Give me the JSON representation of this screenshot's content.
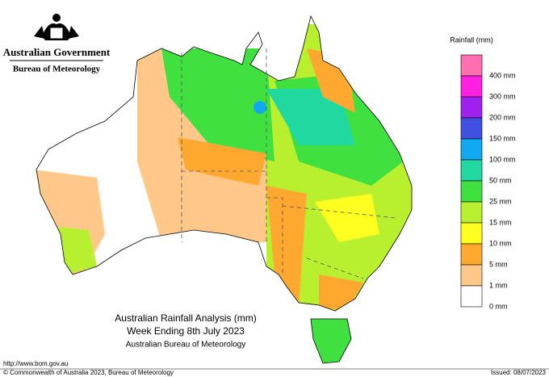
{
  "header": {
    "government": "Australian Government",
    "agency": "Bureau of Meteorology"
  },
  "map": {
    "title": [
      "Australian Rainfall Analysis (mm)",
      "Week Ending 8th July 2023",
      "Australian Bureau of Meteorology"
    ]
  },
  "legend": {
    "title": "Rainfall (mm)",
    "items": [
      {
        "label": "400 mm",
        "color": "#ff70b0"
      },
      {
        "label": "300 mm",
        "color": "#ff20e0"
      },
      {
        "label": "200 mm",
        "color": "#a020f0"
      },
      {
        "label": "150 mm",
        "color": "#4050e0"
      },
      {
        "label": "100 mm",
        "color": "#10a8f0"
      },
      {
        "label": "50 mm",
        "color": "#20d8a0"
      },
      {
        "label": "25 mm",
        "color": "#40e040"
      },
      {
        "label": "15 mm",
        "color": "#b8f030"
      },
      {
        "label": "10 mm",
        "color": "#ffff20"
      },
      {
        "label": "5 mm",
        "color": "#ffa830"
      },
      {
        "label": "1 mm",
        "color": "#ffc888"
      },
      {
        "label": "0 mm",
        "color": "#ffffff"
      }
    ]
  },
  "footer": {
    "url": "http://www.bom.gov.au",
    "copyright": "© Commonwealth of Australia 2023, Bureau of Meteorology",
    "issued": "Issued: 08/07/2023"
  }
}
